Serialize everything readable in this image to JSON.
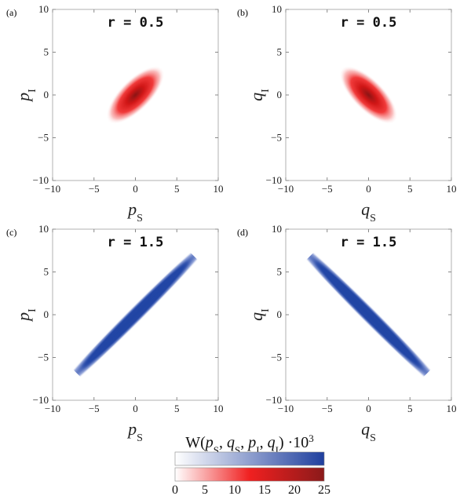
{
  "chart_data": [
    {
      "panel": "(a)",
      "type": "heatmap",
      "title": "r = 0.5",
      "xlabel": "p_S",
      "ylabel": "p_I",
      "xlim": [
        -10,
        10
      ],
      "ylim": [
        -10,
        10
      ],
      "xticks": [
        -10,
        -5,
        0,
        5,
        10
      ],
      "yticks": [
        -10,
        -5,
        0,
        5,
        10
      ],
      "colormap": "red",
      "r": 0.5,
      "correlation": "positive",
      "peak_value": 25
    },
    {
      "panel": "(b)",
      "type": "heatmap",
      "title": "r = 0.5",
      "xlabel": "q_S",
      "ylabel": "q_I",
      "xlim": [
        -10,
        10
      ],
      "ylim": [
        -10,
        10
      ],
      "xticks": [
        -10,
        -5,
        0,
        5,
        10
      ],
      "yticks": [
        -10,
        -5,
        0,
        5,
        10
      ],
      "colormap": "red",
      "r": 0.5,
      "correlation": "negative",
      "peak_value": 25
    },
    {
      "panel": "(c)",
      "type": "heatmap",
      "title": "r = 1.5",
      "xlabel": "p_S",
      "ylabel": "p_I",
      "xlim": [
        -10,
        10
      ],
      "ylim": [
        -10,
        10
      ],
      "xticks": [
        -10,
        -5,
        0,
        5,
        10
      ],
      "yticks": [
        -10,
        -5,
        0,
        5,
        10
      ],
      "colormap": "blue",
      "r": 1.5,
      "correlation": "positive",
      "peak_value": 25
    },
    {
      "panel": "(d)",
      "type": "heatmap",
      "title": "r = 1.5",
      "xlabel": "q_S",
      "ylabel": "q_I",
      "xlim": [
        -10,
        10
      ],
      "ylim": [
        -10,
        10
      ],
      "xticks": [
        -10,
        -5,
        0,
        5,
        10
      ],
      "yticks": [
        -10,
        -5,
        0,
        5,
        10
      ],
      "colormap": "blue",
      "r": 1.5,
      "correlation": "negative",
      "peak_value": 25
    }
  ],
  "colorbar": {
    "title": "W(p_S, q_S, p_I, q_I) ·10^3",
    "ticks": [
      0,
      5,
      10,
      15,
      20,
      25
    ],
    "range": [
      0,
      25
    ],
    "blue_colors": [
      "#ffffff",
      "#1f3f9e"
    ],
    "red_colors": [
      "#ffffff",
      "#f02020",
      "#8b1a1a"
    ]
  }
}
